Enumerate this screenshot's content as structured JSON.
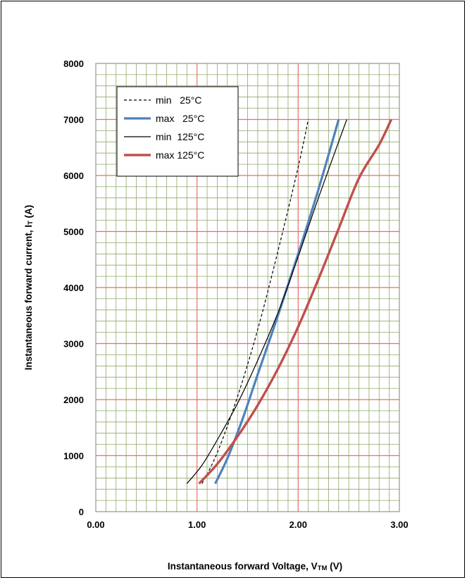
{
  "chart_data": {
    "type": "line",
    "title": "",
    "xlabel": "Instantaneous forward Voltage, V TM (V)",
    "xlabel_main": "Instantaneous forward Voltage, V",
    "xlabel_sub": "TM",
    "xlabel_tail": " (V)",
    "ylabel_main": "Instantaneous forward current, I",
    "ylabel_sub": "T",
    "ylabel_tail": " (A)",
    "xlim": [
      0,
      3
    ],
    "ylim": [
      0,
      8000
    ],
    "x_ticks": [
      "0.00",
      "1.00",
      "2.00",
      "3.00"
    ],
    "y_ticks": [
      "0",
      "1000",
      "2000",
      "3000",
      "4000",
      "5000",
      "6000",
      "7000",
      "8000"
    ],
    "grid": true,
    "legend_position": "top-left",
    "colors": {
      "minor_grid": "#8fa86a",
      "major_grid": "#e07070",
      "min25": "#000000",
      "max25": "#4f81bd",
      "min125": "#000000",
      "max125": "#c0504d"
    },
    "series": [
      {
        "name": "min   25°C",
        "style": "dashed",
        "x": [
          1.05,
          1.2,
          1.4,
          1.6,
          1.8,
          2.0,
          2.1
        ],
        "y": [
          500,
          1050,
          2050,
          3250,
          4650,
          6150,
          7000
        ]
      },
      {
        "name": "max   25°C",
        "style": "thick",
        "x": [
          1.18,
          1.3,
          1.45,
          1.6,
          1.8,
          2.0,
          2.2,
          2.4
        ],
        "y": [
          500,
          950,
          1650,
          2450,
          3500,
          4600,
          5750,
          7000
        ]
      },
      {
        "name": "min  125°C",
        "style": "thin",
        "x": [
          0.9,
          1.05,
          1.2,
          1.4,
          1.6,
          1.8,
          2.0,
          2.2,
          2.48
        ],
        "y": [
          500,
          830,
          1280,
          1930,
          2700,
          3550,
          4550,
          5600,
          7000
        ]
      },
      {
        "name": "max 125°C",
        "style": "thick",
        "x": [
          1.02,
          1.2,
          1.4,
          1.6,
          1.8,
          2.0,
          2.2,
          2.4,
          2.6,
          2.8,
          2.92
        ],
        "y": [
          500,
          850,
          1340,
          1900,
          2550,
          3300,
          4150,
          5050,
          5950,
          6550,
          7000
        ]
      }
    ]
  }
}
